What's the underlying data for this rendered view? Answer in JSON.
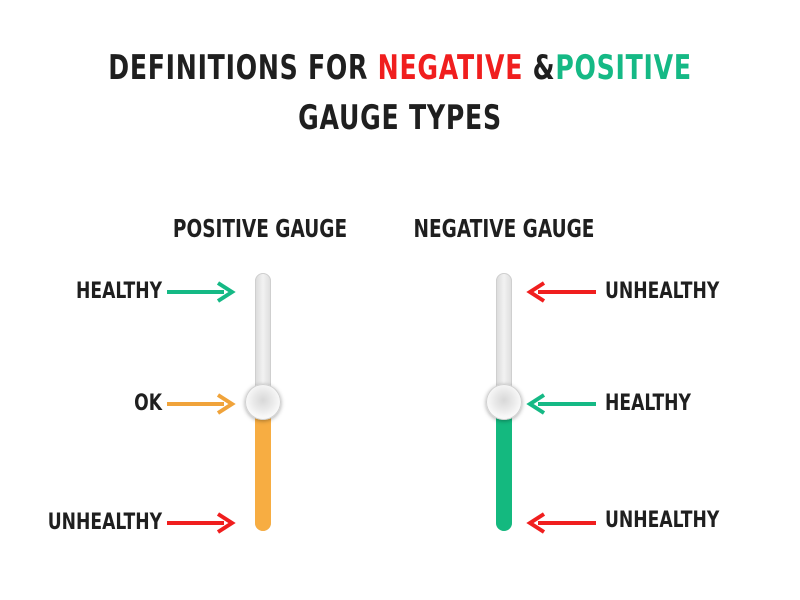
{
  "title": {
    "line1_prefix": "Definitions for",
    "negative_word": "Negative",
    "ampersand": "&",
    "positive_word": "Positive",
    "line2": "Gauge Types"
  },
  "positive_gauge": {
    "heading": "Positive Gauge",
    "top_label": "Healthy",
    "middle_label": "OK",
    "bottom_label": "Unhealthy",
    "level": 0.5
  },
  "negative_gauge": {
    "heading": "Negative Gauge",
    "top_label": "Unhealthy",
    "middle_label": "Healthy",
    "bottom_label": "Unhealthy",
    "level": 0.5
  },
  "colors": {
    "negative_red": "#f01e1e",
    "positive_green": "#15b985",
    "ok_orange": "#f0a33a",
    "gauge_orange": "#f7ad42",
    "gauge_green": "#14b97f",
    "text": "#1f1f1f"
  }
}
